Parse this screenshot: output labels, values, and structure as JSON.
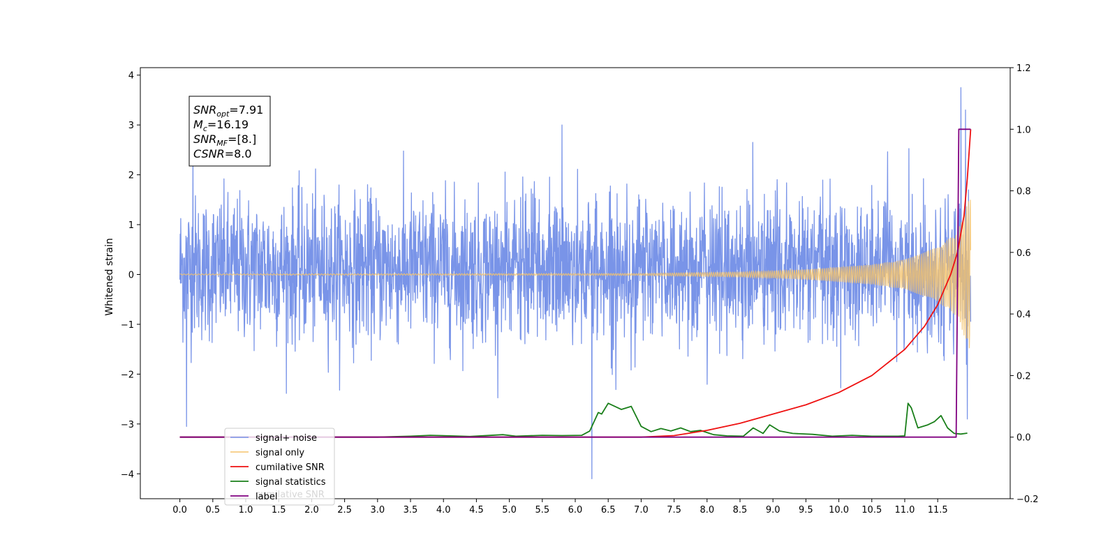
{
  "chart_data": {
    "type": "line",
    "title": "",
    "xlabel": "",
    "ylabel": "Whitened strain",
    "xlim": [
      -0.6,
      12.6
    ],
    "ylim": [
      -4.5,
      4.15
    ],
    "y2lim": [
      -0.2,
      1.2
    ],
    "x_ticks": [
      0.0,
      0.5,
      1.0,
      1.5,
      2.0,
      2.5,
      3.0,
      3.5,
      4.0,
      4.5,
      5.0,
      5.5,
      6.0,
      6.5,
      7.0,
      7.5,
      8.0,
      8.5,
      9.0,
      9.5,
      10.0,
      10.5,
      11.0,
      11.5
    ],
    "x_tick_labels": [
      "0.0",
      "0.5",
      "1.0",
      "1.5",
      "2.0",
      "2.5",
      "3.0",
      "3.5",
      "4.0",
      "4.5",
      "5.0",
      "5.5",
      "6.0",
      "6.5",
      "7.0",
      "7.5",
      "8.0",
      "8.5",
      "9.0",
      "9.5",
      "10.0",
      "10.5",
      "11.0",
      "11.5"
    ],
    "y_ticks": [
      -4,
      -3,
      -2,
      -1,
      0,
      1,
      2,
      3,
      4
    ],
    "y_tick_labels": [
      "−4",
      "−3",
      "−2",
      "−1",
      "0",
      "1",
      "2",
      "3",
      "4"
    ],
    "y2_ticks": [
      -0.2,
      0.0,
      0.2,
      0.4,
      0.6,
      0.8,
      1.0,
      1.2
    ],
    "y2_tick_labels": [
      "−0.2",
      "0.0",
      "0.2",
      "0.4",
      "0.6",
      "0.8",
      "1.0",
      "1.2"
    ],
    "grid": false,
    "legend_position": "lower-left",
    "annotation": {
      "lines": [
        {
          "base": "SNR",
          "sub": "opt",
          "value": "=7.91"
        },
        {
          "base": "M",
          "sub": "c",
          "value": "=16.19"
        },
        {
          "base": "SNR",
          "sub": "MF",
          "value": "=[8.]"
        },
        {
          "base": "CSNR",
          "sub": "",
          "value": "=8.0"
        }
      ]
    },
    "ghost_legend_text": "cumilative SNR",
    "series": [
      {
        "name": "signal+ noise",
        "axis": "left",
        "color": "#7994e8",
        "kind": "noise",
        "x_range": [
          0.0,
          12.0
        ],
        "typical_range": [
          -1.7,
          2.2
        ],
        "notable_peaks": [
          {
            "x": 0.1,
            "y": -3.05
          },
          {
            "x": 0.2,
            "y": 2.55
          },
          {
            "x": 5.8,
            "y": 3.0
          },
          {
            "x": 6.25,
            "y": -4.1
          },
          {
            "x": 11.85,
            "y": 3.75
          },
          {
            "x": 11.92,
            "y": 3.3
          },
          {
            "x": 11.95,
            "y": -2.9
          }
        ]
      },
      {
        "name": "signal only",
        "axis": "left",
        "color": "#f5c36b",
        "kind": "chirp",
        "envelope": [
          {
            "x": 0.0,
            "amp": 0.01
          },
          {
            "x": 7.0,
            "amp": 0.02
          },
          {
            "x": 8.5,
            "amp": 0.05
          },
          {
            "x": 9.5,
            "amp": 0.1
          },
          {
            "x": 10.5,
            "amp": 0.2
          },
          {
            "x": 11.0,
            "amp": 0.3
          },
          {
            "x": 11.5,
            "amp": 0.55
          },
          {
            "x": 11.8,
            "amp": 0.85
          },
          {
            "x": 11.92,
            "amp": 1.3
          },
          {
            "x": 12.0,
            "amp": 1.6
          }
        ]
      },
      {
        "name": "cumilative SNR",
        "axis": "right",
        "color": "#ee1111",
        "x": [
          0.0,
          7.0,
          7.5,
          8.0,
          8.5,
          9.0,
          9.5,
          10.0,
          10.5,
          11.0,
          11.3,
          11.5,
          11.7,
          11.8,
          11.9,
          11.95,
          12.0
        ],
        "values": [
          0.0,
          0.0,
          0.005,
          0.022,
          0.045,
          0.075,
          0.105,
          0.145,
          0.2,
          0.285,
          0.36,
          0.43,
          0.53,
          0.6,
          0.72,
          0.84,
          1.0
        ]
      },
      {
        "name": "signal statistics",
        "axis": "right",
        "color": "#1a7f1a",
        "x": [
          0.0,
          3.0,
          3.5,
          3.8,
          4.1,
          4.4,
          4.9,
          5.1,
          5.5,
          5.8,
          6.1,
          6.22,
          6.35,
          6.4,
          6.5,
          6.6,
          6.7,
          6.85,
          7.0,
          7.15,
          7.3,
          7.45,
          7.6,
          7.75,
          7.9,
          8.1,
          8.3,
          8.55,
          8.7,
          8.85,
          8.95,
          9.1,
          9.3,
          9.6,
          9.9,
          10.2,
          10.5,
          10.9,
          11.0,
          11.05,
          11.1,
          11.2,
          11.35,
          11.45,
          11.55,
          11.65,
          11.75,
          11.85,
          11.95
        ],
        "values": [
          0.0,
          0.0,
          0.003,
          0.006,
          0.004,
          0.002,
          0.008,
          0.003,
          0.006,
          0.005,
          0.006,
          0.02,
          0.08,
          0.075,
          0.11,
          0.1,
          0.09,
          0.1,
          0.035,
          0.018,
          0.028,
          0.02,
          0.03,
          0.018,
          0.022,
          0.008,
          0.004,
          0.003,
          0.03,
          0.012,
          0.04,
          0.02,
          0.012,
          0.009,
          0.003,
          0.006,
          0.003,
          0.003,
          0.004,
          0.11,
          0.095,
          0.03,
          0.04,
          0.05,
          0.07,
          0.03,
          0.012,
          0.01,
          0.013
        ]
      },
      {
        "name": "label",
        "axis": "right",
        "color": "#800080",
        "x": [
          0.0,
          11.78,
          11.82,
          11.92,
          11.92,
          12.0
        ],
        "values": [
          0.0,
          0.0,
          1.0,
          1.0,
          1.0,
          1.0
        ]
      }
    ]
  }
}
